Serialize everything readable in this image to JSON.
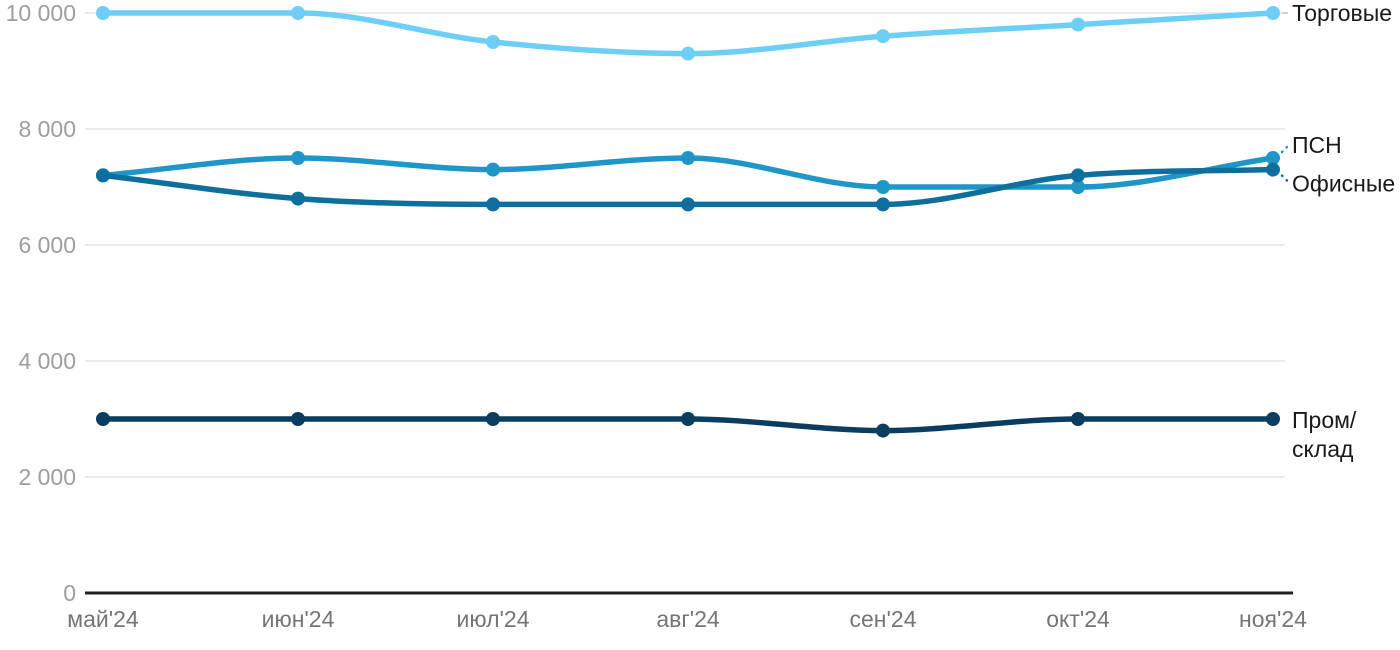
{
  "chart_data": {
    "type": "line",
    "title": "",
    "categories": [
      "май'24",
      "июн'24",
      "июл'24",
      "авг'24",
      "сен'24",
      "окт'24",
      "ноя'24"
    ],
    "series": [
      {
        "name": "Торговые",
        "color": "#6DCFF6",
        "values": [
          10000,
          10000,
          9500,
          9300,
          9600,
          9800,
          10000
        ],
        "end_label": {
          "lines": [
            "Торговые"
          ],
          "dy": 0,
          "connector": "line"
        }
      },
      {
        "name": "ПСН",
        "color": "#2096C8",
        "values": [
          7200,
          7500,
          7300,
          7500,
          7000,
          7000,
          7500
        ],
        "end_label": {
          "lines": [
            "ПСН"
          ],
          "dy": -13,
          "connector": "dots-up"
        }
      },
      {
        "name": "Офисные",
        "color": "#0F6F9C",
        "values": [
          7200,
          6800,
          6700,
          6700,
          6700,
          7200,
          7300
        ],
        "end_label": {
          "lines": [
            "Офисные"
          ],
          "dy": 14,
          "connector": "dots-down"
        }
      },
      {
        "name": "Пром/склад",
        "color": "#0A3D5F",
        "values": [
          3000,
          3000,
          3000,
          3000,
          2800,
          3000,
          3000
        ],
        "end_label": {
          "lines": [
            "Пром/",
            "склад"
          ],
          "dy": 1,
          "connector": "none"
        }
      }
    ],
    "y_axis": {
      "min": 0,
      "max": 10000,
      "ticks": [
        0,
        2000,
        4000,
        6000,
        8000,
        10000
      ],
      "tick_labels": [
        "0",
        "2 000",
        "4 000",
        "6 000",
        "8 000",
        "10 000"
      ]
    },
    "x_axis": {
      "labels": [
        "май'24",
        "июн'24",
        "июл'24",
        "авг'24",
        "сен'24",
        "окт'24",
        "ноя'24"
      ]
    },
    "grid": true,
    "legend_position": "end-labels-right",
    "colors": {
      "grid": "#E6E6E6",
      "axis": "#212121",
      "y_tick_text": "#9E9E9E",
      "x_tick_text": "#757575",
      "end_label_text": "#1A1A1A",
      "connector_gray": "#C9C9C9"
    }
  }
}
